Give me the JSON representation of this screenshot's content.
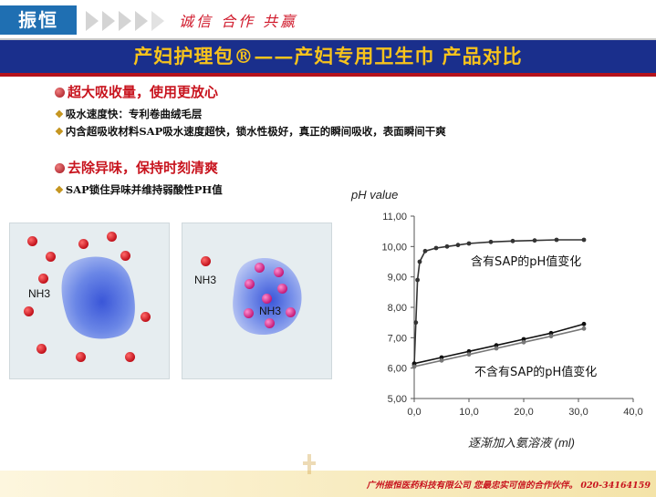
{
  "header": {
    "logo_text": "振恒",
    "slogan": "诚信  合作  共赢",
    "title": "产妇护理包®——产妇专用卫生巾 产品对比"
  },
  "bullets": [
    {
      "heading": "超大吸收量，使用更放心",
      "items": [
        "吸水速度快：专利卷曲绒毛层",
        "内含超吸收材料SAP吸水速度超快，锁水性极好，真正的瞬间吸收，表面瞬间干爽"
      ]
    },
    {
      "heading": "去除异味，保持时刻清爽",
      "items": [
        "SAP锁住异味并维持弱酸性PH值"
      ]
    }
  ],
  "diagram": {
    "left_label": "NH3",
    "right_label_outer": "NH3",
    "right_label_inner": "NH3"
  },
  "footer": {
    "text": "广州振恒医药科技有限公司  您最忠实可信的合作伙伴。 020-34164159"
  },
  "chart_data": {
    "type": "line",
    "title": "pH value",
    "xlabel": "逐渐加入氨溶液 (ml)",
    "ylabel": "pH value",
    "xlim": [
      0,
      40
    ],
    "ylim": [
      5.0,
      11.0
    ],
    "x_ticks": [
      "0,0",
      "10,0",
      "20,0",
      "30,0",
      "40,0"
    ],
    "y_ticks": [
      "5,00",
      "6,00",
      "7,00",
      "8,00",
      "9,00",
      "10,00",
      "11,00"
    ],
    "series": [
      {
        "name": "含有SAP的pH值变化",
        "color": "#333333",
        "x": [
          0,
          0.3,
          0.6,
          1,
          2,
          4,
          6,
          8,
          10,
          14,
          18,
          22,
          26,
          31
        ],
        "y": [
          6.1,
          7.5,
          8.9,
          9.5,
          9.85,
          9.95,
          10.0,
          10.05,
          10.1,
          10.15,
          10.18,
          10.2,
          10.22,
          10.22
        ]
      },
      {
        "name": "不含有SAP的pH值变化",
        "color": "#111111",
        "x": [
          0,
          5,
          10,
          15,
          20,
          25,
          31
        ],
        "y": [
          6.15,
          6.35,
          6.55,
          6.75,
          6.95,
          7.15,
          7.45
        ]
      },
      {
        "name": "",
        "color": "#777777",
        "x": [
          0,
          5,
          10,
          15,
          20,
          25,
          31
        ],
        "y": [
          6.05,
          6.25,
          6.45,
          6.65,
          6.85,
          7.05,
          7.3
        ]
      }
    ],
    "grid": false
  }
}
